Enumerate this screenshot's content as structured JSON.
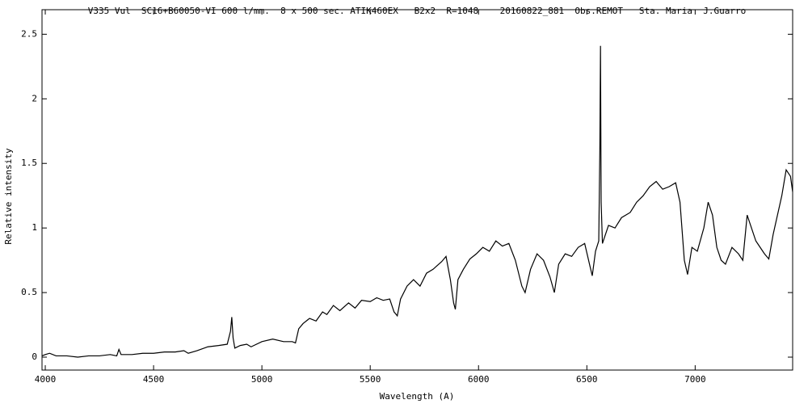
{
  "chart_data": {
    "type": "line",
    "title": "V335 Vul  SC16+B60050-VI 600 l/mm.  8 x 500 sec. ATIK460EX   B2x2  R=1048    20160822_881  Obs.REMOT   Sta. Maria  J.Guarro",
    "xlabel": "Wavelength (A)",
    "ylabel": "Relative intensity",
    "xlim": [
      3985,
      7450
    ],
    "ylim": [
      -0.1,
      2.69
    ],
    "xticks": [
      4000,
      4500,
      5000,
      5500,
      6000,
      6500,
      7000
    ],
    "yticks": [
      0,
      0.5,
      1,
      1.5,
      2,
      2.5
    ],
    "color": "#000000",
    "x": [
      3985,
      4000,
      4020,
      4050,
      4100,
      4150,
      4200,
      4250,
      4300,
      4330,
      4340,
      4350,
      4400,
      4450,
      4500,
      4550,
      4600,
      4640,
      4660,
      4700,
      4750,
      4800,
      4840,
      4855,
      4861,
      4867,
      4875,
      4900,
      4930,
      4950,
      5000,
      5050,
      5100,
      5140,
      5155,
      5170,
      5190,
      5220,
      5250,
      5280,
      5300,
      5330,
      5360,
      5400,
      5430,
      5460,
      5500,
      5530,
      5560,
      5590,
      5610,
      5625,
      5640,
      5670,
      5700,
      5730,
      5760,
      5790,
      5830,
      5850,
      5870,
      5885,
      5893,
      5905,
      5930,
      5960,
      5990,
      6020,
      6050,
      6080,
      6110,
      6140,
      6170,
      6200,
      6215,
      6240,
      6270,
      6300,
      6330,
      6350,
      6370,
      6400,
      6430,
      6460,
      6490,
      6515,
      6525,
      6540,
      6555,
      6560,
      6563,
      6566,
      6572,
      6600,
      6630,
      6660,
      6700,
      6730,
      6760,
      6790,
      6820,
      6850,
      6880,
      6910,
      6930,
      6950,
      6965,
      6985,
      7010,
      7040,
      7060,
      7080,
      7100,
      7120,
      7140,
      7170,
      7200,
      7220,
      7240,
      7260,
      7280,
      7300,
      7320,
      7340,
      7360,
      7380,
      7400,
      7420,
      7440,
      7450
    ],
    "values": [
      0.01,
      0.02,
      0.03,
      0.01,
      0.01,
      0.0,
      0.01,
      0.01,
      0.02,
      0.01,
      0.06,
      0.02,
      0.02,
      0.03,
      0.03,
      0.04,
      0.04,
      0.05,
      0.03,
      0.05,
      0.08,
      0.09,
      0.1,
      0.2,
      0.31,
      0.15,
      0.07,
      0.09,
      0.1,
      0.08,
      0.12,
      0.14,
      0.12,
      0.12,
      0.11,
      0.22,
      0.26,
      0.3,
      0.28,
      0.35,
      0.33,
      0.4,
      0.36,
      0.42,
      0.38,
      0.44,
      0.43,
      0.46,
      0.44,
      0.45,
      0.35,
      0.32,
      0.45,
      0.55,
      0.6,
      0.55,
      0.65,
      0.68,
      0.74,
      0.78,
      0.6,
      0.42,
      0.37,
      0.6,
      0.68,
      0.76,
      0.8,
      0.85,
      0.82,
      0.9,
      0.86,
      0.88,
      0.75,
      0.55,
      0.5,
      0.68,
      0.8,
      0.75,
      0.62,
      0.5,
      0.72,
      0.8,
      0.78,
      0.85,
      0.88,
      0.7,
      0.63,
      0.82,
      0.9,
      1.6,
      2.41,
      1.2,
      0.88,
      1.02,
      1.0,
      1.08,
      1.12,
      1.2,
      1.25,
      1.32,
      1.36,
      1.3,
      1.32,
      1.35,
      1.2,
      0.75,
      0.64,
      0.85,
      0.82,
      1.0,
      1.2,
      1.1,
      0.85,
      0.75,
      0.72,
      0.85,
      0.8,
      0.75,
      1.1,
      1.0,
      0.9,
      0.85,
      0.8,
      0.76,
      0.95,
      1.1,
      1.25,
      1.45,
      1.4,
      1.28
    ]
  }
}
